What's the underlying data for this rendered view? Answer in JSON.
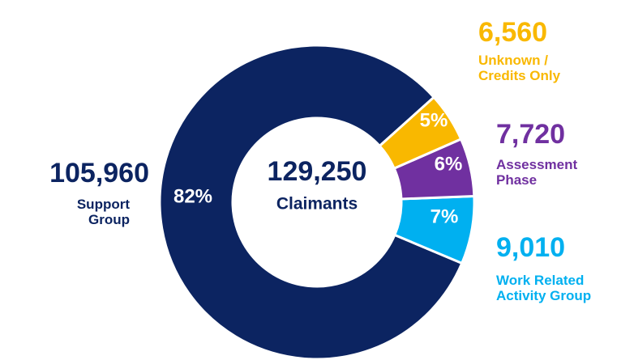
{
  "chart_data": {
    "type": "donut",
    "center_value": "129,250",
    "center_label": "Claimants",
    "categories": [
      "Unknown / Credits Only",
      "Assessment Phase",
      "Work Related Activity Group",
      "Support Group"
    ],
    "values": [
      6560,
      7720,
      9010,
      105960
    ],
    "value_labels": [
      "6,560",
      "7,720",
      "9,010",
      "105,960"
    ],
    "percent_labels": [
      "5%",
      "6%",
      "7%",
      "82%"
    ],
    "colors": [
      "#f9b800",
      "#7030a0",
      "#00b0f0",
      "#0c2461"
    ]
  }
}
